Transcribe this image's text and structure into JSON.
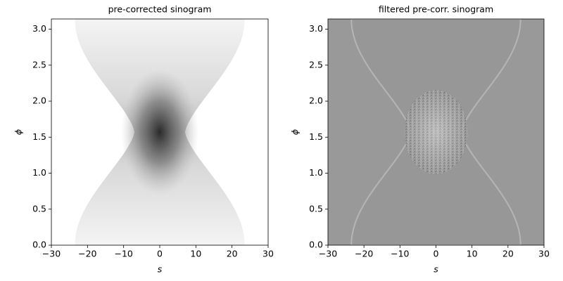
{
  "chart_data": [
    {
      "type": "image",
      "title": "pre-corrected sinogram",
      "x_label": "s",
      "y_label": "ϕ",
      "colormap": "gray_r",
      "xlim": [
        -30,
        30
      ],
      "ylim": [
        0,
        3.14159
      ],
      "xticks": [
        {
          "value": -30,
          "label": "−30"
        },
        {
          "value": -20,
          "label": "−20"
        },
        {
          "value": -10,
          "label": "−10"
        },
        0,
        10,
        20,
        30
      ],
      "yticks": [
        {
          "value": 0,
          "label": "0.0"
        },
        {
          "value": 0.5,
          "label": "0.5"
        },
        {
          "value": 1,
          "label": "1.0"
        },
        {
          "value": 1.5,
          "label": "1.5"
        },
        {
          "value": 2,
          "label": "2.0"
        },
        {
          "value": 2.5,
          "label": "2.5"
        },
        {
          "value": 3,
          "label": "3.0"
        }
      ]
    },
    {
      "type": "image",
      "title": "filtered pre-corr. sinogram",
      "x_label": "s",
      "y_label": "ϕ",
      "colormap": "gray",
      "xlim": [
        -30,
        30
      ],
      "ylim": [
        0,
        3.14159
      ],
      "xticks": [
        {
          "value": -30,
          "label": "−30"
        },
        {
          "value": -20,
          "label": "−20"
        },
        {
          "value": -10,
          "label": "−10"
        },
        0,
        10,
        20,
        30
      ],
      "yticks": [
        {
          "value": 0,
          "label": "0.0"
        },
        {
          "value": 0.5,
          "label": "0.5"
        },
        {
          "value": 1,
          "label": "1.0"
        },
        {
          "value": 1.5,
          "label": "1.5"
        },
        {
          "value": 2,
          "label": "2.0"
        },
        {
          "value": 2.5,
          "label": "2.5"
        },
        {
          "value": 3,
          "label": "3.0"
        }
      ]
    }
  ]
}
